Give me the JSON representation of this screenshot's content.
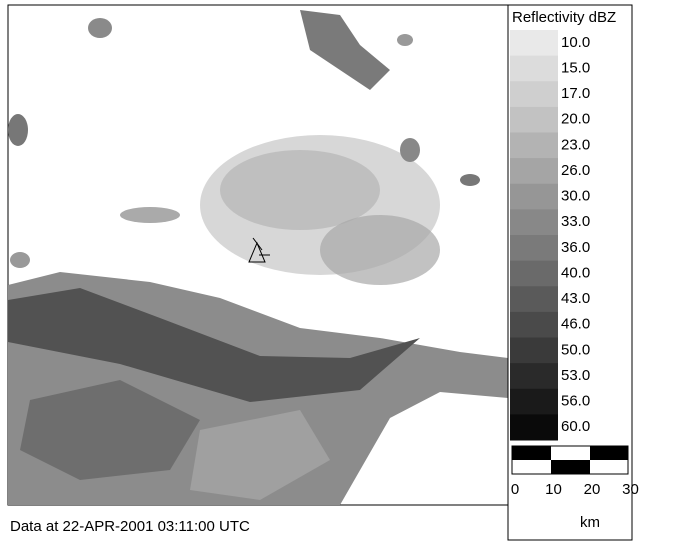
{
  "legend": {
    "title": "Reflectivity dBZ",
    "entries": [
      {
        "label": "10.0",
        "color": "#e9e9e9"
      },
      {
        "label": "15.0",
        "color": "#dcdcdc"
      },
      {
        "label": "17.0",
        "color": "#cfcfcf"
      },
      {
        "label": "20.0",
        "color": "#c2c2c2"
      },
      {
        "label": "23.0",
        "color": "#b3b3b3"
      },
      {
        "label": "26.0",
        "color": "#a5a5a5"
      },
      {
        "label": "30.0",
        "color": "#969696"
      },
      {
        "label": "33.0",
        "color": "#888888"
      },
      {
        "label": "36.0",
        "color": "#7a7a7a"
      },
      {
        "label": "40.0",
        "color": "#6a6a6a"
      },
      {
        "label": "43.0",
        "color": "#5a5a5a"
      },
      {
        "label": "46.0",
        "color": "#4a4a4a"
      },
      {
        "label": "50.0",
        "color": "#3a3a3a"
      },
      {
        "label": "53.0",
        "color": "#2a2a2a"
      },
      {
        "label": "56.0",
        "color": "#1a1a1a"
      },
      {
        "label": "60.0",
        "color": "#0a0a0a"
      }
    ]
  },
  "scale": {
    "labels": [
      "0",
      "10",
      "20",
      "30"
    ],
    "unit": "km"
  },
  "caption": "Data at 22-APR-2001 03:11:00 UTC"
}
